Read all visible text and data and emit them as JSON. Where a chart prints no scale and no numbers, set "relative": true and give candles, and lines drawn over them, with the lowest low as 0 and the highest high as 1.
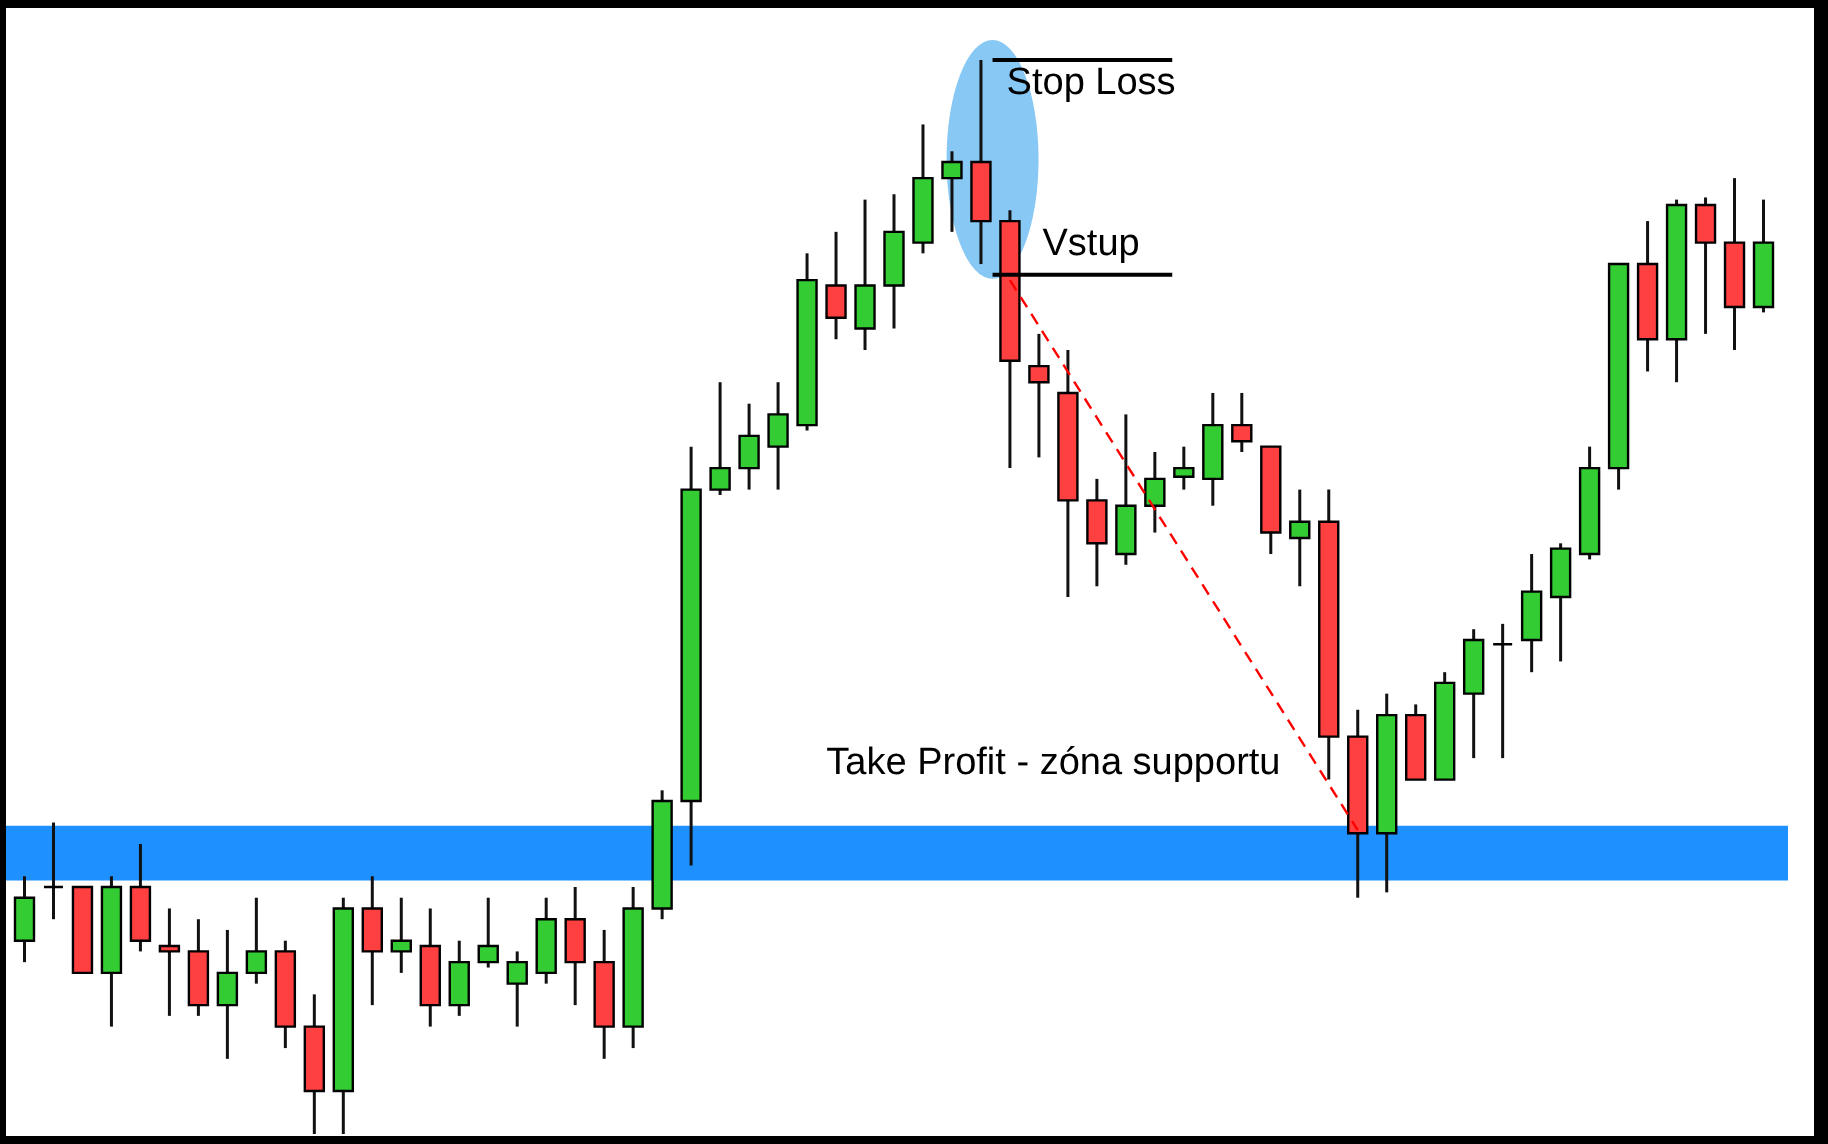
{
  "chart_data": {
    "type": "candlestick",
    "relative": true,
    "categories": [
      null,
      null,
      null,
      null,
      null,
      null,
      null,
      null,
      null,
      null,
      null,
      null,
      null,
      null,
      null,
      null,
      null,
      null,
      null,
      null,
      null,
      null,
      null,
      null,
      null,
      null,
      null,
      null,
      null,
      null,
      null,
      null,
      null,
      null,
      null,
      null,
      null,
      null,
      null,
      null,
      null,
      null,
      null,
      null,
      null,
      null,
      null,
      null,
      null,
      null,
      null,
      null,
      null,
      null,
      null,
      null,
      null,
      null,
      null,
      null,
      null
    ],
    "ohlc": [
      [
        0.18,
        0.24,
        0.16,
        0.22
      ],
      [
        0.23,
        0.29,
        0.2,
        0.23
      ],
      [
        0.23,
        0.23,
        0.15,
        0.15
      ],
      [
        0.15,
        0.24,
        0.1,
        0.23
      ],
      [
        0.23,
        0.27,
        0.17,
        0.18
      ],
      [
        0.175,
        0.21,
        0.11,
        0.17
      ],
      [
        0.17,
        0.2,
        0.11,
        0.12
      ],
      [
        0.12,
        0.19,
        0.07,
        0.15
      ],
      [
        0.15,
        0.22,
        0.14,
        0.17
      ],
      [
        0.17,
        0.18,
        0.08,
        0.1
      ],
      [
        0.1,
        0.13,
        0,
        0.04
      ],
      [
        0.04,
        0.22,
        0,
        0.21
      ],
      [
        0.21,
        0.24,
        0.12,
        0.17
      ],
      [
        0.17,
        0.22,
        0.15,
        0.18
      ],
      [
        0.175,
        0.21,
        0.1,
        0.12
      ],
      [
        0.12,
        0.18,
        0.11,
        0.16
      ],
      [
        0.16,
        0.22,
        0.155,
        0.175
      ],
      [
        0.14,
        0.17,
        0.1,
        0.16
      ],
      [
        0.15,
        0.22,
        0.14,
        0.2
      ],
      [
        0.2,
        0.23,
        0.12,
        0.16
      ],
      [
        0.16,
        0.19,
        0.07,
        0.1
      ],
      [
        0.1,
        0.23,
        0.08,
        0.21
      ],
      [
        0.21,
        0.32,
        0.2,
        0.31
      ],
      [
        0.31,
        0.64,
        0.25,
        0.6
      ],
      [
        0.6,
        0.7,
        0.595,
        0.62
      ],
      [
        0.62,
        0.68,
        0.6,
        0.65
      ],
      [
        0.64,
        0.7,
        0.6,
        0.67
      ],
      [
        0.66,
        0.82,
        0.655,
        0.795
      ],
      [
        0.79,
        0.84,
        0.74,
        0.76
      ],
      [
        0.75,
        0.87,
        0.73,
        0.79
      ],
      [
        0.79,
        0.875,
        0.75,
        0.84
      ],
      [
        0.83,
        0.94,
        0.82,
        0.89
      ],
      [
        0.89,
        0.915,
        0.84,
        0.905
      ],
      [
        0.905,
        1,
        0.81,
        0.85
      ],
      [
        0.85,
        0.86,
        0.62,
        0.72
      ],
      [
        0.715,
        0.745,
        0.63,
        0.7
      ],
      [
        0.69,
        0.73,
        0.5,
        0.59
      ],
      [
        0.59,
        0.61,
        0.51,
        0.55
      ],
      [
        0.54,
        0.67,
        0.53,
        0.585
      ],
      [
        0.585,
        0.635,
        0.56,
        0.61
      ],
      [
        0.612,
        0.64,
        0.6,
        0.62
      ],
      [
        0.61,
        0.69,
        0.585,
        0.66
      ],
      [
        0.66,
        0.69,
        0.635,
        0.645
      ],
      [
        0.64,
        0.64,
        0.54,
        0.56
      ],
      [
        0.555,
        0.6,
        0.51,
        0.57
      ],
      [
        0.57,
        0.6,
        0.33,
        0.37
      ],
      [
        0.37,
        0.395,
        0.22,
        0.28
      ],
      [
        0.28,
        0.41,
        0.225,
        0.39
      ],
      [
        0.39,
        0.4,
        0.33,
        0.33
      ],
      [
        0.33,
        0.43,
        0.33,
        0.42
      ],
      [
        0.41,
        0.47,
        0.35,
        0.46
      ],
      [
        0.456,
        0.475,
        0.35,
        0.456
      ],
      [
        0.46,
        0.54,
        0.43,
        0.505
      ],
      [
        0.5,
        0.55,
        0.44,
        0.545
      ],
      [
        0.54,
        0.64,
        0.535,
        0.62
      ],
      [
        0.62,
        0.81,
        0.6,
        0.81
      ],
      [
        0.81,
        0.85,
        0.71,
        0.74
      ],
      [
        0.74,
        0.87,
        0.7,
        0.865
      ],
      [
        0.865,
        0.872,
        0.745,
        0.83
      ],
      [
        0.83,
        0.89,
        0.73,
        0.77
      ],
      [
        0.77,
        0.87,
        0.765,
        0.83
      ]
    ],
    "colors": [
      "#33cc33",
      "#000000",
      "#ff4040",
      "#33cc33",
      "#ff4040",
      "#ff4040",
      "#ff4040",
      "#33cc33",
      "#33cc33",
      "#ff4040",
      "#ff4040",
      "#33cc33",
      "#ff4040",
      "#33cc33",
      "#ff4040",
      "#33cc33",
      "#33cc33",
      "#33cc33",
      "#33cc33",
      "#ff4040",
      "#ff4040",
      "#33cc33",
      "#33cc33",
      "#33cc33",
      "#33cc33",
      "#33cc33",
      "#33cc33",
      "#33cc33",
      "#ff4040",
      "#33cc33",
      "#33cc33",
      "#33cc33",
      "#33cc33",
      "#ff4040",
      "#ff4040",
      "#ff4040",
      "#ff4040",
      "#ff4040",
      "#33cc33",
      "#33cc33",
      "#33cc33",
      "#33cc33",
      "#ff4040",
      "#ff4040",
      "#33cc33",
      "#ff4040",
      "#ff4040",
      "#33cc33",
      "#ff4040",
      "#33cc33",
      "#33cc33",
      "#000000",
      "#33cc33",
      "#33cc33",
      "#33cc33",
      "#33cc33",
      "#ff4040",
      "#33cc33",
      "#ff4040",
      "#ff4040",
      "#33cc33"
    ],
    "series": [
      {
        "type": "line",
        "color": "#ff0000",
        "line_style": "dashed",
        "values": [
          null,
          null,
          null,
          null,
          null,
          null,
          null,
          null,
          null,
          null,
          null,
          null,
          null,
          null,
          null,
          null,
          null,
          null,
          null,
          null,
          null,
          null,
          null,
          null,
          null,
          null,
          null,
          null,
          null,
          null,
          null,
          null,
          null,
          null,
          0.795,
          null,
          null,
          null,
          null,
          null,
          null,
          null,
          null,
          null,
          null,
          null,
          0.283,
          null,
          null,
          null,
          null,
          null,
          null,
          null,
          null,
          null,
          null,
          null,
          null,
          null,
          null
        ]
      }
    ],
    "ref_lines": [
      {
        "axis": "y",
        "value": 1,
        "label": "Stop Loss"
      },
      {
        "axis": "y",
        "value": 0.8,
        "label": "Vstup"
      }
    ],
    "bands": [
      {
        "axis": "y",
        "from": 0.236,
        "to": 0.287,
        "label": "Take Profit - zóna supportu",
        "color": "#1e90ff"
      }
    ]
  }
}
